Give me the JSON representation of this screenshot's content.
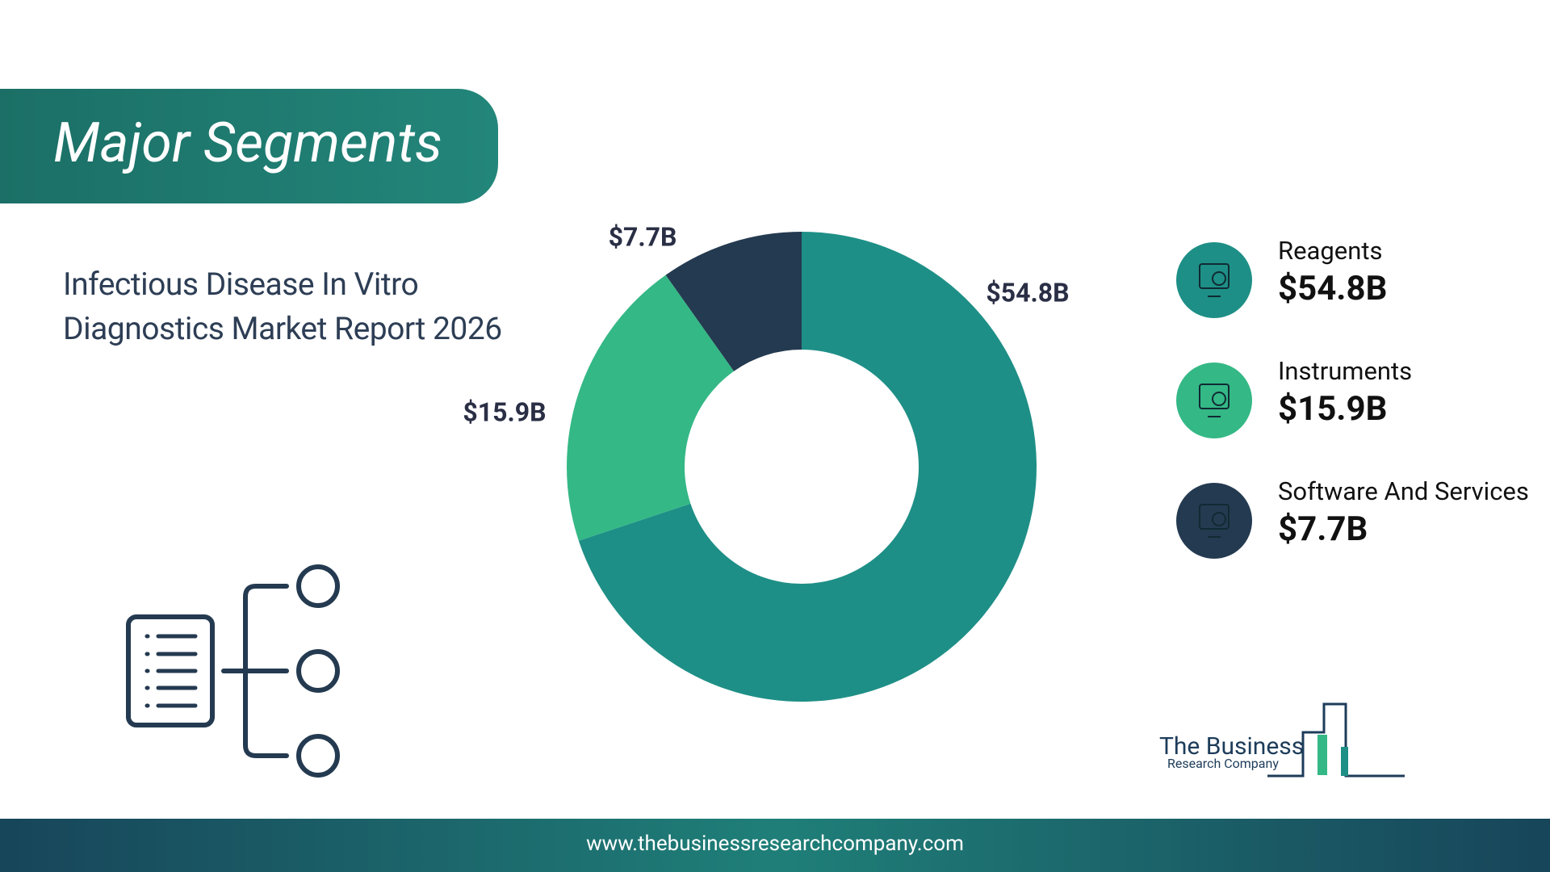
{
  "header": {
    "title": "Major Segments"
  },
  "subtitle": "Infectious Disease In Vitro Diagnostics Market Report 2026",
  "chart_data": {
    "type": "donut",
    "categories": [
      "Reagents",
      "Instruments",
      "Software And Services"
    ],
    "values": [
      54.8,
      15.9,
      7.7
    ],
    "value_labels": [
      "$54.8B",
      "$15.9B",
      "$7.7B"
    ],
    "colors": [
      "#1e8f86",
      "#34b886",
      "#243a50"
    ]
  },
  "logo": {
    "line1": "The Business",
    "line2": "Research Company"
  },
  "footer": {
    "url": "www.thebusinessresearchcompany.com"
  }
}
